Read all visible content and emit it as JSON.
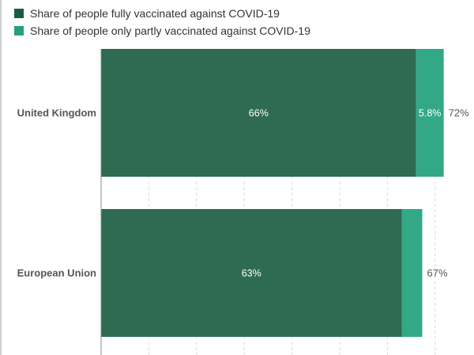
{
  "chart_data": {
    "type": "bar",
    "orientation": "horizontal",
    "stacked": true,
    "categories": [
      "United Kingdom",
      "European Union"
    ],
    "series": [
      {
        "name": "Share of people fully vaccinated against COVID-19",
        "values": [
          66,
          63
        ],
        "labels": [
          "66%",
          "63%"
        ],
        "color": "#2e6b52"
      },
      {
        "name": "Share of people only partly vaccinated against COVID-19",
        "values": [
          5.8,
          4.3
        ],
        "labels": [
          "5.8%",
          ""
        ],
        "color": "#33a886"
      }
    ],
    "totals": [
      "72%",
      "67%"
    ],
    "xlim": [
      0,
      80
    ],
    "grid": true,
    "legend": "top-left"
  }
}
